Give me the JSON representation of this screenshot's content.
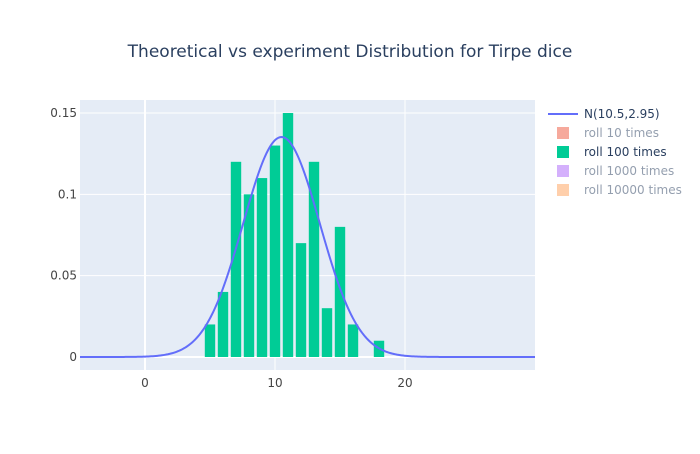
{
  "chart_data": {
    "type": "bar",
    "title": "Theoretical vs experiment Distribution for Tirpe dice",
    "xlabel": "",
    "ylabel": "",
    "xlim": [
      -5,
      30
    ],
    "ylim": [
      -0.008,
      0.158
    ],
    "x_ticks": [
      0,
      10,
      20
    ],
    "x_tick_labels": [
      "0",
      "10",
      "20"
    ],
    "y_ticks": [
      0,
      0.05,
      0.1,
      0.15
    ],
    "y_tick_labels": [
      "0",
      "0.05",
      "0.1",
      "0.15"
    ],
    "grid": true,
    "legend_position": "top-right",
    "series": [
      {
        "name": "N(10.5,2.95)",
        "type": "line",
        "color": "#636efa",
        "visible": true,
        "mean": 10.5,
        "std": 2.95,
        "x_range": [
          -5,
          30
        ]
      },
      {
        "name": "roll 10 times",
        "type": "bar",
        "color": "#EF553B",
        "visible": false
      },
      {
        "name": "roll 100 times",
        "type": "bar",
        "color": "#00cc96",
        "visible": true,
        "x": [
          5,
          6,
          7,
          8,
          9,
          10,
          11,
          12,
          13,
          14,
          15,
          16,
          18
        ],
        "values": [
          0.02,
          0.04,
          0.12,
          0.1,
          0.11,
          0.13,
          0.15,
          0.07,
          0.12,
          0.03,
          0.08,
          0.02,
          0.01
        ]
      },
      {
        "name": "roll 1000 times",
        "type": "bar",
        "color": "#ab63fa",
        "visible": false
      },
      {
        "name": "roll 10000 times",
        "type": "bar",
        "color": "#FFA15A",
        "visible": false
      }
    ]
  }
}
